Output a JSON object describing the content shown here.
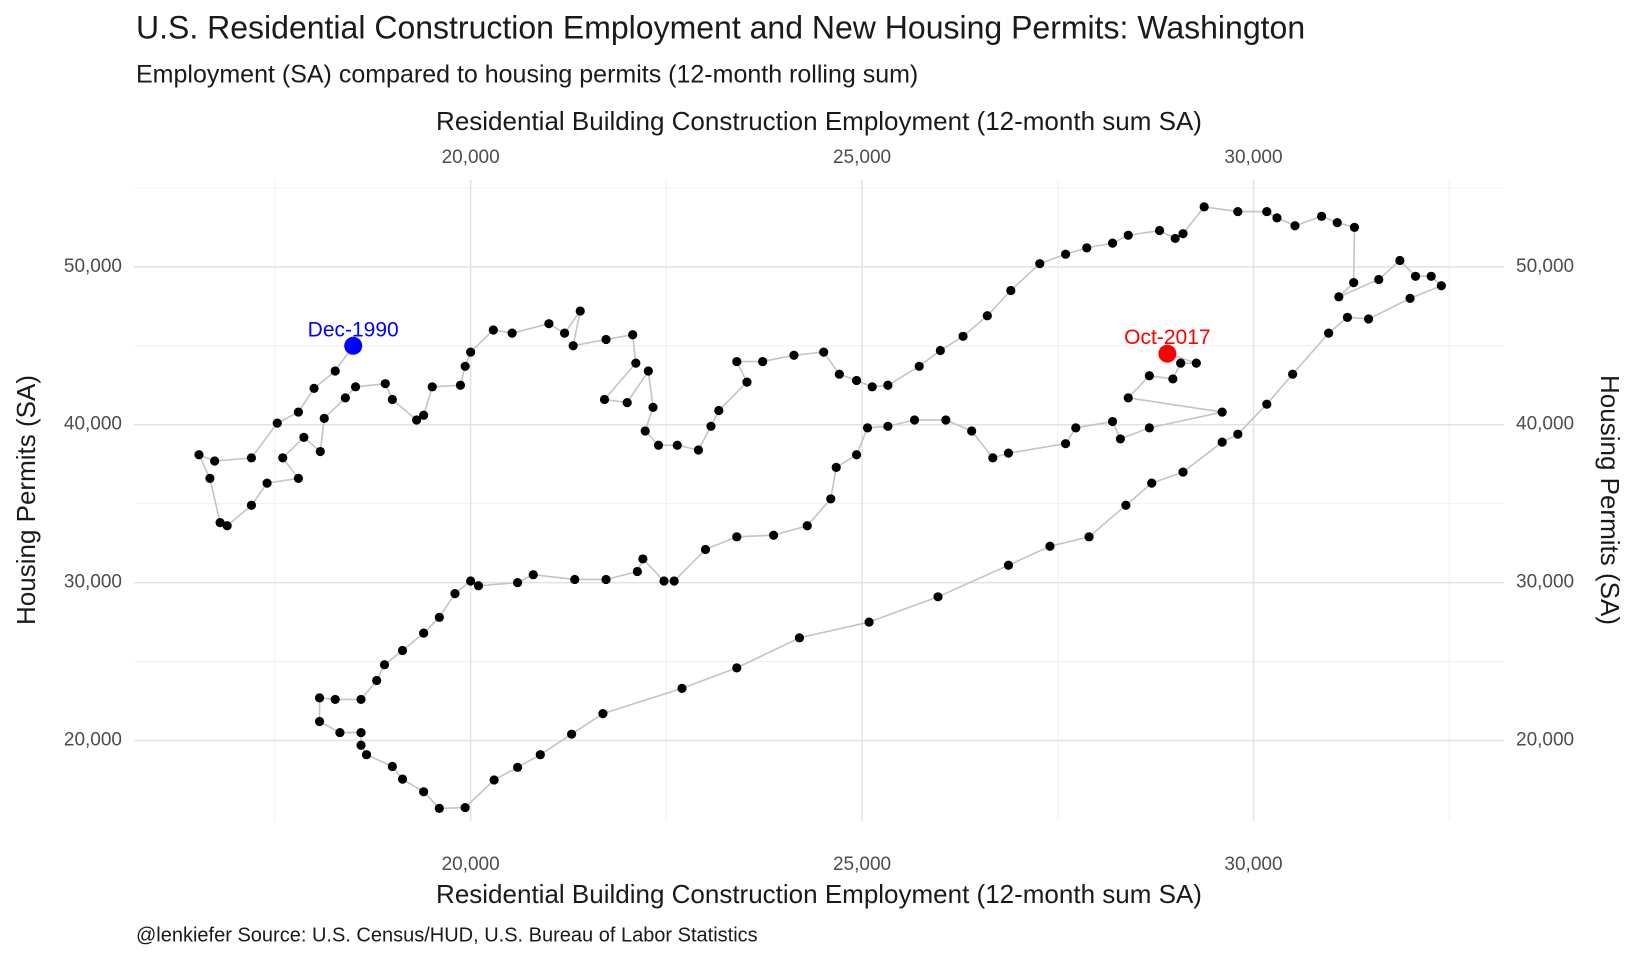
{
  "chart_data": {
    "type": "connected_scatter",
    "title": "U.S. Residential Construction Employment and New Housing Permits: Washington",
    "subtitle": "Employment (SA) compared to housing permits (12-month rolling sum)",
    "x_label": "Residential Building Construction Employment (12-month sum SA)",
    "y_label": "Housing Permits (SA)",
    "caption": "@lenkiefer Source: U.S. Census/HUD, U.S. Bureau of Labor Statistics",
    "xlim": [
      15700,
      33200
    ],
    "ylim": [
      14900,
      55500
    ],
    "xticks": [
      {
        "value": 20000,
        "label": "20,000"
      },
      {
        "value": 25000,
        "label": "25,000"
      },
      {
        "value": 30000,
        "label": "30,000"
      }
    ],
    "yticks": [
      {
        "value": 20000,
        "label": "20,000"
      },
      {
        "value": 30000,
        "label": "30,000"
      },
      {
        "value": 40000,
        "label": "40,000"
      },
      {
        "value": 50000,
        "label": "50,000"
      }
    ],
    "x_minor_grid": [
      17500,
      22500,
      27500,
      32500
    ],
    "y_minor_grid": [
      25000,
      35000,
      45000,
      55000
    ],
    "grid": true,
    "point_color": "#000000",
    "line_color": "#c4c4c4",
    "x": [
      18500,
      18270,
      18000,
      17800,
      17530,
      17200,
      16730,
      16530,
      16670,
      16800,
      16890,
      17200,
      17400,
      17800,
      17600,
      17870,
      18080,
      18130,
      18400,
      18530,
      18910,
      19000,
      19310,
      19400,
      19510,
      19870,
      19930,
      20000,
      20290,
      20530,
      21000,
      21200,
      21400,
      21310,
      21730,
      22070,
      22110,
      21710,
      22000,
      22270,
      22330,
      22230,
      22400,
      22640,
      22910,
      23070,
      23170,
      23530,
      23400,
      23730,
      24130,
      24510,
      24710,
      24930,
      25130,
      25330,
      25730,
      26000,
      26290,
      26600,
      26900,
      27270,
      27600,
      27870,
      28200,
      28400,
      28800,
      29000,
      29100,
      29370,
      29800,
      30170,
      30300,
      30530,
      30870,
      31070,
      31290,
      31280,
      31090,
      31600,
      31870,
      32070,
      32270,
      32400,
      32000,
      31470,
      31200,
      30960,
      30500,
      30170,
      29800,
      29600,
      29100,
      28700,
      28370,
      27900,
      27400,
      26870,
      25970,
      25090,
      24200,
      23400,
      22700,
      21690,
      21290,
      20890,
      20600,
      20300,
      19930,
      19600,
      19400,
      19130,
      19000,
      18670,
      18600,
      18600,
      18330,
      18070,
      18070,
      18270,
      18600,
      18800,
      18900,
      19130,
      19400,
      19600,
      19800,
      20000,
      20100,
      20600,
      20800,
      21330,
      21730,
      22130,
      22200,
      22470,
      22600,
      23000,
      23400,
      23870,
      24300,
      24600,
      24670,
      24930,
      25070,
      25330,
      25670,
      26070,
      26400,
      26670,
      26870,
      27600,
      27730,
      28200,
      28300,
      28670,
      29600,
      28400,
      28670,
      28970,
      29070,
      29270,
      28900
    ],
    "y": [
      45000,
      43400,
      42300,
      40800,
      40100,
      37900,
      37700,
      38100,
      36600,
      33800,
      33600,
      34900,
      36300,
      36600,
      37900,
      39200,
      38300,
      40400,
      41700,
      42400,
      42600,
      41600,
      40300,
      40600,
      42400,
      42500,
      43700,
      44600,
      46000,
      45800,
      46400,
      45800,
      47200,
      45000,
      45400,
      45700,
      43900,
      41600,
      41400,
      43400,
      41100,
      39600,
      38700,
      38700,
      38400,
      39900,
      40900,
      42700,
      44000,
      44000,
      44400,
      44600,
      43200,
      42800,
      42400,
      42500,
      43700,
      44700,
      45600,
      46900,
      48500,
      50200,
      50800,
      51200,
      51500,
      52000,
      52300,
      51800,
      52100,
      53800,
      53500,
      53500,
      53100,
      52600,
      53200,
      52800,
      52500,
      49000,
      48100,
      49200,
      50400,
      49400,
      49400,
      48800,
      48000,
      46700,
      46800,
      45800,
      43200,
      41300,
      39400,
      38900,
      37000,
      36300,
      34900,
      32900,
      32300,
      31100,
      29100,
      27500,
      26500,
      24600,
      23300,
      21700,
      20400,
      19100,
      18300,
      17500,
      15750,
      15700,
      16750,
      17550,
      18350,
      19100,
      19700,
      20500,
      20500,
      21200,
      22700,
      22600,
      22600,
      23800,
      24800,
      25700,
      26800,
      27800,
      29300,
      30100,
      29800,
      30000,
      30500,
      30200,
      30200,
      30700,
      31500,
      30100,
      30100,
      32100,
      32900,
      33000,
      33600,
      35300,
      37300,
      38100,
      39800,
      39900,
      40300,
      40300,
      39600,
      37900,
      38200,
      38800,
      39800,
      40200,
      39100,
      39800,
      40800,
      41700,
      43100,
      42900,
      43900,
      43900,
      44500
    ],
    "highlights": [
      {
        "label": "Dec-1990",
        "x": 18500,
        "y": 45000,
        "color": "#0000ff"
      },
      {
        "label": "Oct-2017",
        "x": 28900,
        "y": 44500,
        "color": "#ff0000"
      }
    ]
  }
}
